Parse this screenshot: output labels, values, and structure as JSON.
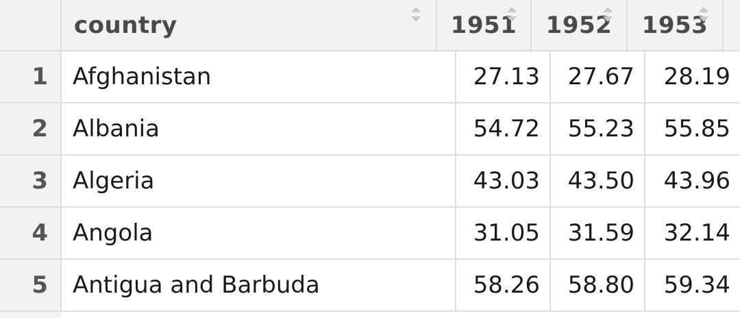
{
  "table": {
    "columns": [
      {
        "label": "country"
      },
      {
        "label": "1951"
      },
      {
        "label": "1952"
      },
      {
        "label": "1953"
      }
    ],
    "rows": [
      {
        "index": "1",
        "country": "Afghanistan",
        "v1951": "27.13",
        "v1952": "27.67",
        "v1953": "28.19"
      },
      {
        "index": "2",
        "country": "Albania",
        "v1951": "54.72",
        "v1952": "55.23",
        "v1953": "55.85"
      },
      {
        "index": "3",
        "country": "Algeria",
        "v1951": "43.03",
        "v1952": "43.50",
        "v1953": "43.96"
      },
      {
        "index": "4",
        "country": "Angola",
        "v1951": "31.05",
        "v1952": "31.59",
        "v1953": "32.14"
      },
      {
        "index": "5",
        "country": "Antigua and Barbuda",
        "v1951": "58.26",
        "v1952": "58.80",
        "v1953": "59.34"
      }
    ]
  },
  "icons": {
    "sort": "sort-arrows-icon"
  },
  "colors": {
    "header_bg": "#f2f2f2",
    "border": "#dcdcdc",
    "text": "#1a1a1a"
  }
}
